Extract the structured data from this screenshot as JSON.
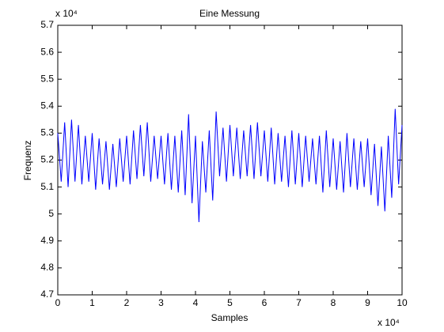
{
  "chart_data": {
    "type": "line",
    "title": "Eine Messung",
    "x_label": "Samples",
    "y_label": "Frequenz",
    "x_multiplier": "x 10⁴",
    "y_multiplier": "x 10⁴",
    "xlim": [
      0,
      10
    ],
    "xticks": [
      0,
      1,
      2,
      3,
      4,
      5,
      6,
      7,
      8,
      9,
      10
    ],
    "ylim": [
      4.7,
      5.7
    ],
    "yticks": [
      4.7,
      4.8,
      4.9,
      5,
      5.1,
      5.2,
      5.3,
      5.4,
      5.5,
      5.6,
      5.7
    ],
    "grid": false,
    "x": [
      0,
      0.1,
      0.2,
      0.3,
      0.4,
      0.5,
      0.6,
      0.7,
      0.8,
      0.9,
      1,
      1.1,
      1.2,
      1.3,
      1.4,
      1.5,
      1.6,
      1.7,
      1.8,
      1.9,
      2,
      2.1,
      2.2,
      2.3,
      2.4,
      2.5,
      2.6,
      2.7,
      2.8,
      2.9,
      3,
      3.1,
      3.2,
      3.3,
      3.4,
      3.5,
      3.6,
      3.7,
      3.8,
      3.9,
      4,
      4.1,
      4.2,
      4.3,
      4.4,
      4.5,
      4.6,
      4.7,
      4.8,
      4.9,
      5,
      5.1,
      5.2,
      5.3,
      5.4,
      5.5,
      5.6,
      5.7,
      5.8,
      5.9,
      6,
      6.1,
      6.2,
      6.3,
      6.4,
      6.5,
      6.6,
      6.7,
      6.8,
      6.9,
      7,
      7.1,
      7.2,
      7.3,
      7.4,
      7.5,
      7.6,
      7.7,
      7.8,
      7.9,
      8,
      8.1,
      8.2,
      8.3,
      8.4,
      8.5,
      8.6,
      8.7,
      8.8,
      8.9,
      9,
      9.1,
      9.2,
      9.3,
      9.4,
      9.5,
      9.6,
      9.7,
      9.8,
      9.9,
      10
    ],
    "series": [
      {
        "color": "#0000ff",
        "values": [
          5.3,
          5.12,
          5.34,
          5.1,
          5.35,
          5.12,
          5.33,
          5.11,
          5.29,
          5.12,
          5.3,
          5.09,
          5.28,
          5.11,
          5.27,
          5.09,
          5.26,
          5.1,
          5.28,
          5.12,
          5.29,
          5.11,
          5.31,
          5.13,
          5.33,
          5.14,
          5.34,
          5.12,
          5.29,
          5.13,
          5.29,
          5.11,
          5.3,
          5.09,
          5.29,
          5.08,
          5.31,
          5.07,
          5.37,
          5.04,
          5.29,
          4.97,
          5.27,
          5.08,
          5.31,
          5.05,
          5.38,
          5.14,
          5.32,
          5.12,
          5.33,
          5.14,
          5.32,
          5.13,
          5.31,
          5.14,
          5.33,
          5.13,
          5.34,
          5.14,
          5.31,
          5.12,
          5.32,
          5.11,
          5.3,
          5.12,
          5.29,
          5.1,
          5.31,
          5.11,
          5.3,
          5.1,
          5.29,
          5.12,
          5.28,
          5.11,
          5.29,
          5.08,
          5.31,
          5.1,
          5.28,
          5.09,
          5.27,
          5.08,
          5.3,
          5.1,
          5.28,
          5.09,
          5.27,
          5.1,
          5.28,
          5.07,
          5.26,
          5.03,
          5.25,
          5.01,
          5.29,
          5.06,
          5.39,
          5.11,
          5.33
        ]
      }
    ]
  }
}
